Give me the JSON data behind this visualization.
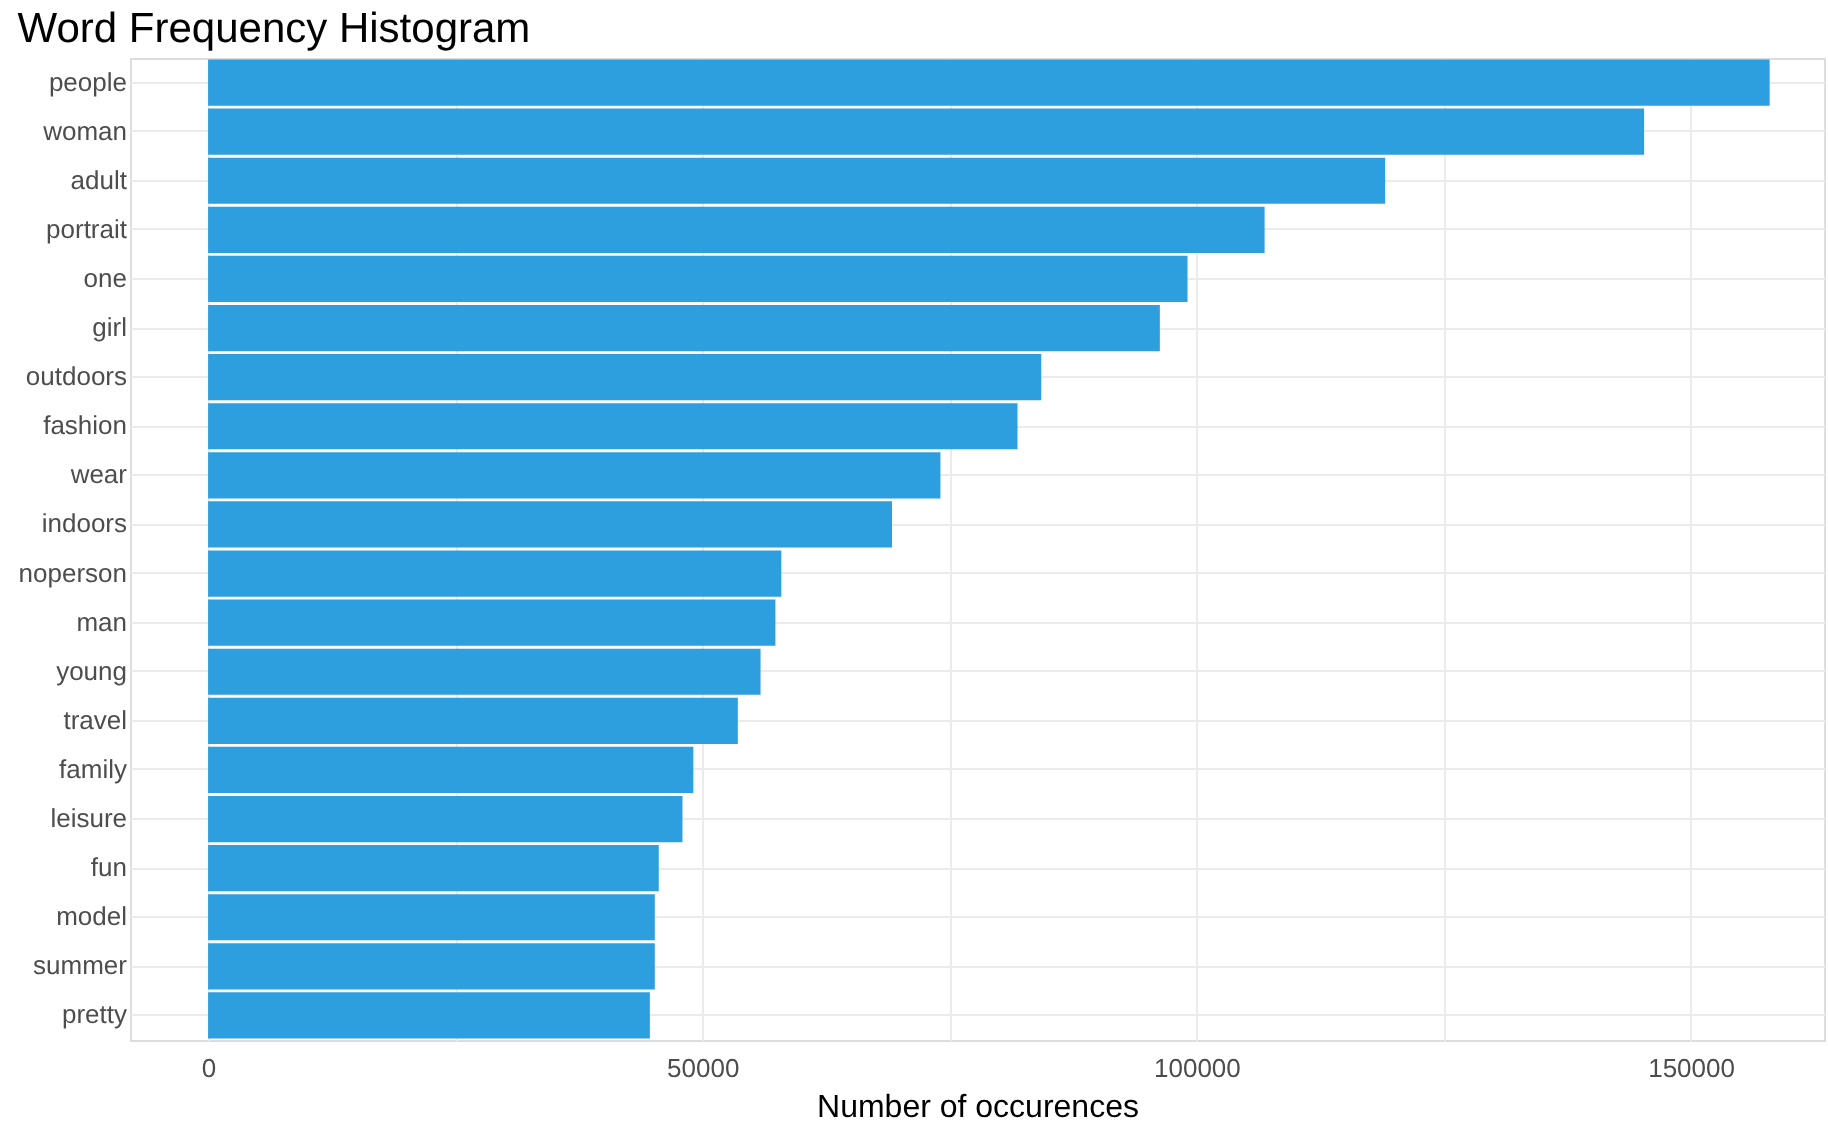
{
  "chart_data": {
    "type": "bar",
    "orientation": "horizontal",
    "title": "Word Frequency Histogram",
    "xlabel": "Number of occurences",
    "categories": [
      "people",
      "woman",
      "adult",
      "portrait",
      "one",
      "girl",
      "outdoors",
      "fashion",
      "wear",
      "indoors",
      "noperson",
      "man",
      "young",
      "travel",
      "family",
      "leisure",
      "fun",
      "model",
      "summer",
      "pretty"
    ],
    "values": [
      158000,
      145300,
      119100,
      106900,
      99100,
      96300,
      84300,
      81900,
      74100,
      69200,
      58000,
      57400,
      55900,
      53600,
      49100,
      48000,
      45600,
      45200,
      45200,
      44700
    ],
    "color": "#2d9fdf",
    "xlim": [
      -7900,
      163500
    ],
    "xticks": [
      0,
      {
        "value": 25000,
        "label": null
      },
      50000,
      {
        "value": 75000,
        "label": null
      },
      100000,
      {
        "value": 125000,
        "label": null
      },
      150000
    ],
    "grid": true
  }
}
